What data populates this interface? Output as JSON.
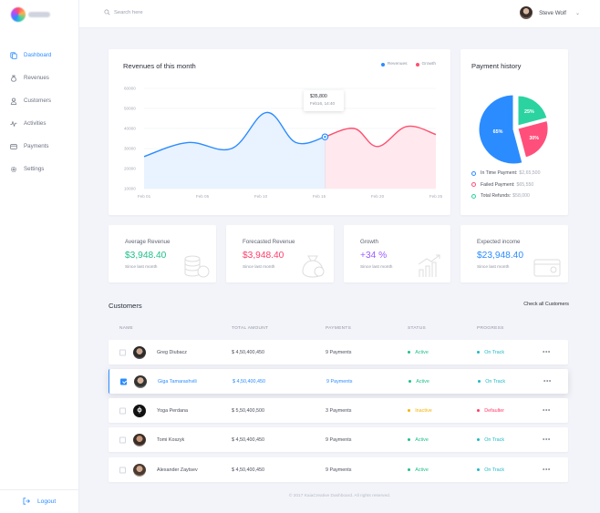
{
  "sidebar": {
    "items": [
      {
        "label": "Dashboard",
        "icon": "dashboard-icon",
        "active": true
      },
      {
        "label": "Revenues",
        "icon": "money-bag-icon",
        "active": false
      },
      {
        "label": "Customers",
        "icon": "user-icon",
        "active": false
      },
      {
        "label": "Activities",
        "icon": "pulse-icon",
        "active": false
      },
      {
        "label": "Payments",
        "icon": "card-icon",
        "active": false
      },
      {
        "label": "Settings",
        "icon": "gear-icon",
        "active": false
      }
    ],
    "logout_label": "Logout"
  },
  "topbar": {
    "search_placeholder": "Search here",
    "user_name": "Steve Wolf"
  },
  "revenue": {
    "title": "Revenues of this month",
    "legend": [
      "Revenues",
      "Growth"
    ],
    "tooltip_value": "$35,800",
    "tooltip_date": "Feb16, 14:40"
  },
  "chart_data": [
    {
      "type": "area",
      "title": "Revenues of this month",
      "categories": [
        "Feb 01",
        "Feb 05",
        "Feb 10",
        "Feb 15",
        "Feb 20",
        "Feb 25"
      ],
      "y_ticks": [
        60000,
        50000,
        40000,
        30000,
        20000,
        10000
      ],
      "ylim": [
        10000,
        60000
      ],
      "series": [
        {
          "name": "Revenues",
          "color": "#2b8cff",
          "x": [
            0,
            0.15,
            0.3,
            0.42,
            0.52,
            0.62
          ],
          "values": [
            26000,
            33000,
            30000,
            48000,
            33000,
            35800
          ]
        },
        {
          "name": "Growth",
          "color": "#ff4f6f",
          "x": [
            0.62,
            0.72,
            0.8,
            0.9,
            1.0
          ],
          "values": [
            35800,
            40000,
            31000,
            41000,
            37000
          ]
        }
      ],
      "grid": true,
      "legend": "top-right"
    },
    {
      "type": "pie",
      "title": "Payment history",
      "labels": [
        "In Time Payment",
        "Failed Payment",
        "Total Refunds"
      ],
      "values": [
        65,
        30,
        25
      ],
      "display_labels": [
        "65%",
        "30%",
        "25%"
      ],
      "colors": [
        "#2b8cff",
        "#ff4f7a",
        "#2bd3a0"
      ]
    }
  ],
  "payment_history": {
    "title": "Payment history",
    "legend": [
      {
        "label": "In Time Payment:",
        "amount": "$2,65,500",
        "color": "#2b8cff"
      },
      {
        "label": "Failed Payment:",
        "amount": "$65,550",
        "color": "#ff4f7a"
      },
      {
        "label": "Total Refunds:",
        "amount": "$58,000",
        "color": "#2bd3a0"
      }
    ]
  },
  "stats": [
    {
      "label": "Average Revenue",
      "value": "$3,948.40",
      "color": "#1fc08a",
      "since": "Since last month",
      "icon": "coins-icon"
    },
    {
      "label": "Forecasted Revenue",
      "value": "$3,948.40",
      "color": "#ff3d6a",
      "since": "Since last month",
      "icon": "money-bag-icon"
    },
    {
      "label": "Growth",
      "value": "+34 %",
      "color": "#9a5cff",
      "since": "Since last month",
      "icon": "growth-chart-icon"
    },
    {
      "label": "Expected income",
      "value": "$23,948.40",
      "color": "#2b8cff",
      "since": "Since last month",
      "icon": "wallet-icon"
    }
  ],
  "customers": {
    "title": "Customers",
    "check_all": "Check all Customers",
    "columns": [
      "NAME",
      "TOTAL AMOUNT",
      "PAYMENTS",
      "STATUS",
      "PROGRESS"
    ],
    "rows": [
      {
        "name": "Greg Diubacz",
        "amount": "$ 4,50,400,450",
        "payments": "9 Payments",
        "status": "Active",
        "status_color": "#1fc08a",
        "progress": "On Track",
        "progress_color": "#1fb9c4",
        "checked": false
      },
      {
        "name": "Giga Tamarashvili",
        "amount": "$ 4,50,400,450",
        "payments": "9 Payments",
        "status": "Active",
        "status_color": "#1fc08a",
        "progress": "On Track",
        "progress_color": "#1fb9c4",
        "checked": true
      },
      {
        "name": "Yoga Perdana",
        "amount": "$ 5,50,400,500",
        "payments": "3 Payments",
        "status": "Inactive",
        "status_color": "#f5b400",
        "progress": "Defaulter",
        "progress_color": "#ff3d6a",
        "checked": false
      },
      {
        "name": "Tomi Koszyk",
        "amount": "$ 4,50,400,450",
        "payments": "9 Payments",
        "status": "Active",
        "status_color": "#1fc08a",
        "progress": "On Track",
        "progress_color": "#1fb9c4",
        "checked": false
      },
      {
        "name": "Alexander Zaytsev",
        "amount": "$ 4,50,400,450",
        "payments": "9 Payments",
        "status": "Active",
        "status_color": "#1fc08a",
        "progress": "On Track",
        "progress_color": "#1fb9c4",
        "checked": false
      }
    ],
    "more_label": "•••"
  },
  "footer": "© 2017 KaiaCreative Dashboard. All rights reserved."
}
